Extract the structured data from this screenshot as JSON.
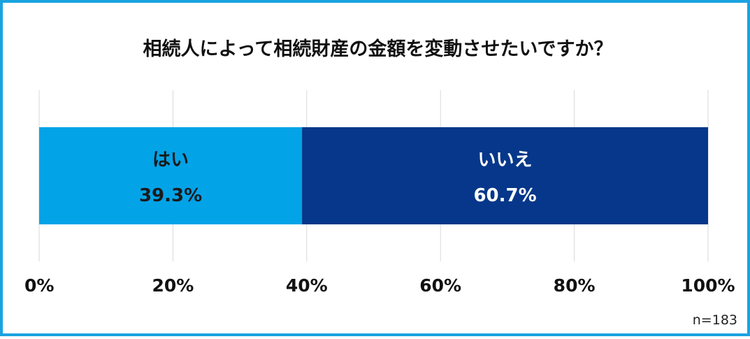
{
  "chart_data": {
    "type": "bar",
    "orientation": "horizontal-stacked",
    "title": "相続人によって相続財産の金額を変動させたいですか？",
    "categories": [
      "はい",
      "いいえ"
    ],
    "values": [
      39.3,
      60.7
    ],
    "value_labels": [
      "39.3%",
      "60.7%"
    ],
    "colors": [
      "#03a3e8",
      "#06378a"
    ],
    "label_color": "#1a1a1a",
    "label_color_dark_bar": "#ffffff",
    "xlim": [
      0,
      100
    ],
    "x_ticks": [
      0,
      20,
      40,
      60,
      80,
      100
    ],
    "x_tick_labels": [
      "0%",
      "20%",
      "40%",
      "60%",
      "80%",
      "100%"
    ],
    "grid": true,
    "legend": "none"
  },
  "note": "n=183",
  "frame_color": "#1aa3e0"
}
